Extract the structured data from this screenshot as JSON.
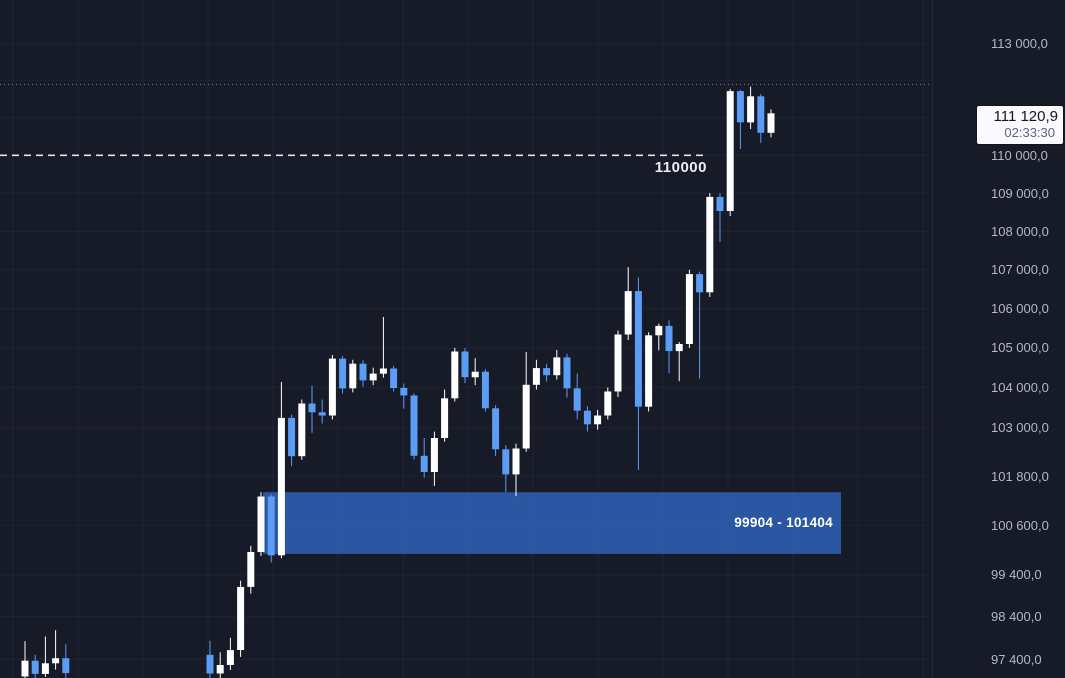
{
  "chart": {
    "last_price": "111 120,9",
    "countdown": "02:33:30",
    "price_line_label": "110000",
    "zone_label": "99904 - 101404"
  },
  "price_axis": {
    "labels": [
      {
        "text": "113 000,0",
        "price": 113000
      },
      {
        "text": "110 000,0",
        "price": 110000
      },
      {
        "text": "109 000,0",
        "price": 109000
      },
      {
        "text": "108 000,0",
        "price": 108000
      },
      {
        "text": "107 000,0",
        "price": 107000
      },
      {
        "text": "106 000,0",
        "price": 106000
      },
      {
        "text": "105 000,0",
        "price": 105000
      },
      {
        "text": "104 000,0",
        "price": 104000
      },
      {
        "text": "103 000,0",
        "price": 103000
      },
      {
        "text": "101 800,0",
        "price": 101800
      },
      {
        "text": "100 600,0",
        "price": 100600
      },
      {
        "text": "99 400,0",
        "price": 99400
      },
      {
        "text": "98 400,0",
        "price": 98400
      },
      {
        "text": "97 400,0",
        "price": 97400
      }
    ]
  },
  "chart_data": {
    "type": "candlestick",
    "scale": "logarithmic",
    "visible_price_range": [
      96980,
      113700
    ],
    "grid": true,
    "up_color": "#ffffff",
    "down_color": "#5b9cf4",
    "annotations": {
      "dashed_level": {
        "price": 110000,
        "label": "110000",
        "color": "#dfe2ea",
        "extends_to_x_frac": 0.758
      },
      "dotted_level": {
        "price": 111900,
        "color": "#7c8294"
      },
      "zone": {
        "label": "99904 - 101404",
        "price_from": 99904,
        "price_to": 101404,
        "fill": "#2d5aa8"
      },
      "last_price": {
        "value": 111120.9,
        "display": "111 120,9",
        "countdown": "02:33:30",
        "badge_bg": "#fafafc"
      }
    },
    "gap_note": "weekend gap with no candles between the two clusters",
    "candles_pre_gap": [
      [
        96990,
        97820,
        96940,
        97360
      ],
      [
        97360,
        97500,
        96900,
        97050
      ],
      [
        97050,
        97930,
        96980,
        97300
      ],
      [
        97300,
        98080,
        97150,
        97420
      ],
      [
        97420,
        97750,
        96950,
        97070
      ]
    ],
    "candles_main": [
      [
        97500,
        97830,
        96880,
        97060
      ],
      [
        97060,
        97560,
        96900,
        97260
      ],
      [
        97260,
        97900,
        97140,
        97610
      ],
      [
        97610,
        99260,
        97450,
        99110
      ],
      [
        99110,
        100100,
        98950,
        99950
      ],
      [
        99950,
        101404,
        99850,
        101300
      ],
      [
        101300,
        101350,
        99700,
        99870
      ],
      [
        99870,
        104140,
        99800,
        103240
      ],
      [
        103240,
        103320,
        102040,
        102290
      ],
      [
        102290,
        103700,
        102200,
        103600
      ],
      [
        103600,
        104050,
        102870,
        103380
      ],
      [
        103380,
        103700,
        103100,
        103300
      ],
      [
        103300,
        104820,
        103200,
        104730
      ],
      [
        104730,
        104800,
        103850,
        103980
      ],
      [
        103980,
        104700,
        103880,
        104600
      ],
      [
        104600,
        104690,
        104020,
        104180
      ],
      [
        104180,
        104500,
        104060,
        104350
      ],
      [
        104350,
        105790,
        104250,
        104480
      ],
      [
        104480,
        104550,
        103900,
        103990
      ],
      [
        103990,
        104100,
        103470,
        103800
      ],
      [
        103800,
        103850,
        102210,
        102300
      ],
      [
        102300,
        102740,
        101760,
        101900
      ],
      [
        101900,
        102900,
        101560,
        102740
      ],
      [
        102740,
        103950,
        102650,
        103730
      ],
      [
        103730,
        105000,
        103650,
        104910
      ],
      [
        104910,
        104990,
        104110,
        104260
      ],
      [
        104260,
        104740,
        104060,
        104400
      ],
      [
        104400,
        104460,
        103400,
        103480
      ],
      [
        103480,
        103560,
        102290,
        102460
      ],
      [
        102460,
        102560,
        101410,
        101840
      ],
      [
        101840,
        102600,
        101310,
        102480
      ],
      [
        102480,
        104900,
        102400,
        104070
      ],
      [
        104070,
        104700,
        103950,
        104490
      ],
      [
        104490,
        104600,
        104150,
        104310
      ],
      [
        104310,
        104950,
        104200,
        104760
      ],
      [
        104760,
        104850,
        103750,
        103980
      ],
      [
        103980,
        104350,
        103200,
        103420
      ],
      [
        103420,
        103530,
        102900,
        103080
      ],
      [
        103080,
        103440,
        102950,
        103300
      ],
      [
        103300,
        104000,
        103200,
        103900
      ],
      [
        103900,
        105440,
        103760,
        105340
      ],
      [
        105340,
        107070,
        105200,
        106450
      ],
      [
        106450,
        106800,
        101950,
        103520
      ],
      [
        103520,
        105400,
        103400,
        105320
      ],
      [
        105320,
        105620,
        104940,
        105560
      ],
      [
        105560,
        105700,
        104360,
        104920
      ],
      [
        104920,
        105150,
        104160,
        105100
      ],
      [
        105100,
        107000,
        105000,
        106890
      ],
      [
        106890,
        106950,
        104230,
        106420
      ],
      [
        106420,
        109000,
        106300,
        108900
      ],
      [
        108900,
        109000,
        107720,
        108530
      ],
      [
        108530,
        111780,
        108400,
        111720
      ],
      [
        111720,
        111750,
        110170,
        110880
      ],
      [
        110880,
        111840,
        110700,
        111580
      ],
      [
        111580,
        111640,
        110330,
        110600
      ],
      [
        110600,
        111230,
        110480,
        111120.9
      ]
    ]
  }
}
